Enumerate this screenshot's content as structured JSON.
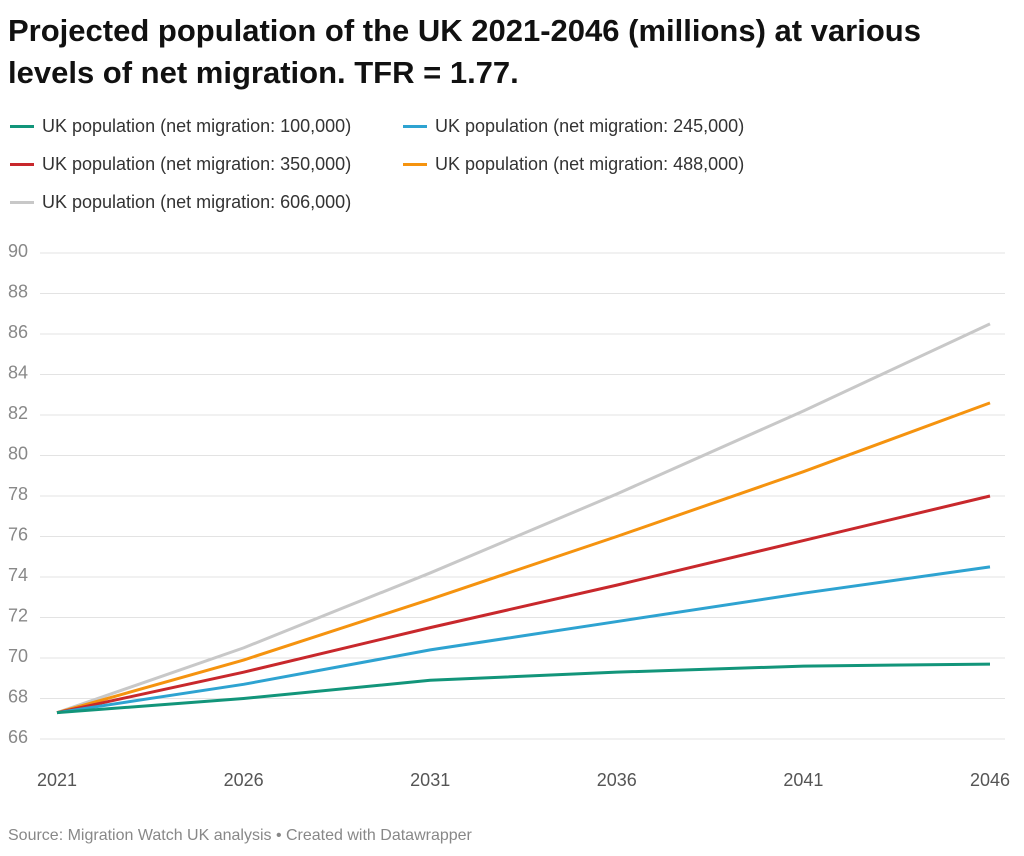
{
  "chart_data": {
    "type": "line",
    "title": "Projected population of the UK 2021-2046 (millions) at various levels of net migration. TFR = 1.77.",
    "x": [
      2021,
      2026,
      2031,
      2036,
      2041,
      2046
    ],
    "series": [
      {
        "name": "UK population (net migration: 100,000)",
        "color": "#12957a",
        "values": [
          67.3,
          68.0,
          68.9,
          69.3,
          69.6,
          69.7
        ]
      },
      {
        "name": "UK population (net migration: 245,000)",
        "color": "#2ea3d1",
        "values": [
          67.3,
          68.7,
          70.4,
          71.8,
          73.2,
          74.5
        ]
      },
      {
        "name": "UK population (net migration: 350,000)",
        "color": "#c8282c",
        "values": [
          67.3,
          69.3,
          71.5,
          73.6,
          75.8,
          78.0
        ]
      },
      {
        "name": "UK population (net migration: 488,000)",
        "color": "#f5930f",
        "values": [
          67.3,
          69.9,
          72.9,
          76.0,
          79.2,
          82.6
        ]
      },
      {
        "name": "UK population (net migration: 606,000)",
        "color": "#c8c8c8",
        "values": [
          67.3,
          70.5,
          74.2,
          78.1,
          82.2,
          86.5
        ]
      }
    ],
    "xlim": [
      2021,
      2046
    ],
    "xticks": [
      2021,
      2026,
      2031,
      2036,
      2041,
      2046
    ],
    "ylim": [
      66,
      90
    ],
    "yticks": [
      66,
      68,
      70,
      72,
      74,
      76,
      78,
      80,
      82,
      84,
      86,
      88,
      90
    ],
    "grid": true,
    "source": "Source: Migration Watch UK analysis • Created with Datawrapper"
  }
}
